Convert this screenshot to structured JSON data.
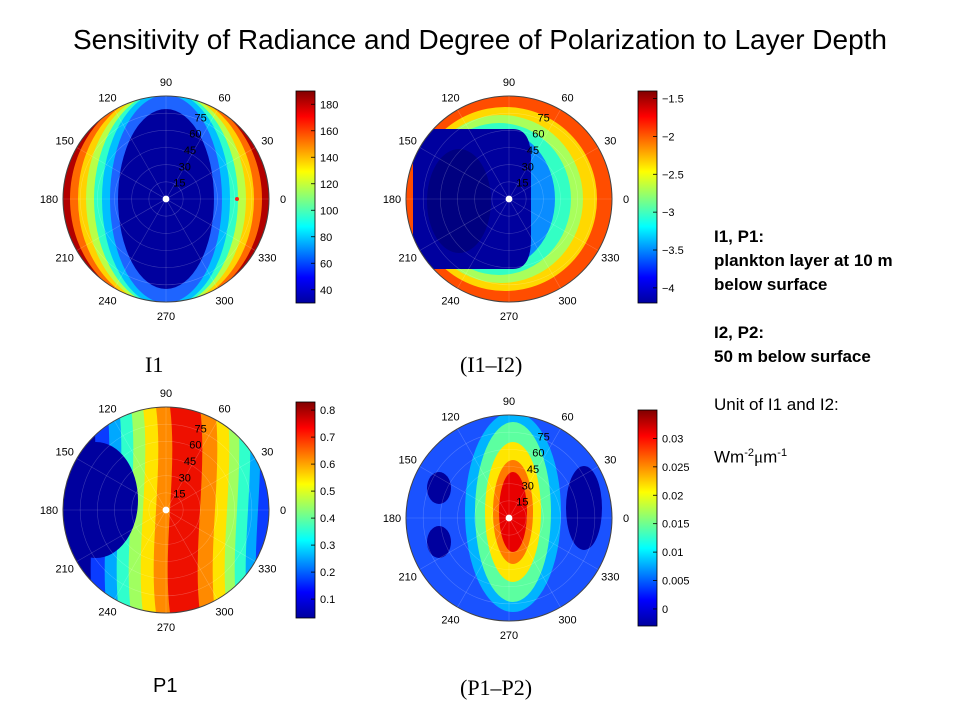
{
  "title": "Sensitivity of Radiance and Degree of Polarization to Layer Depth",
  "captions": {
    "i1": "I1",
    "i1_i2": "(I1–I2)",
    "p1": "P1",
    "p1_p2": "(P1–P2)"
  },
  "notes": {
    "line1": "I1, P1:",
    "line2": "plankton layer at 10 m",
    "line3": "below surface",
    "line4": "I2, P2:",
    "line5": "50 m below surface",
    "line6": "Unit of I1 and I2:",
    "unit_base1": "Wm",
    "unit_sup1": "-2",
    "unit_mu": "μ",
    "unit_base2": "m",
    "unit_sup2": "-1"
  },
  "chart_data": [
    {
      "type": "heatmap",
      "projection": "polar",
      "caption": "I1",
      "azimuth_labels": [
        "0",
        "30",
        "60",
        "90",
        "120",
        "150",
        "180",
        "210",
        "240",
        "270",
        "300",
        "330"
      ],
      "zenith_labels": [
        "15",
        "30",
        "45",
        "60",
        "75"
      ],
      "colorbar": {
        "ticks": [
          40,
          60,
          80,
          100,
          120,
          140,
          160,
          180
        ],
        "range": [
          30,
          190
        ]
      },
      "rings_outside_in": [
        {
          "value": 180,
          "color": "#b20000",
          "shape": "band",
          "spread": 0.3
        },
        {
          "value": 160,
          "color": "#ff6a00",
          "shape": "band",
          "spread": 0.3
        },
        {
          "value": 140,
          "color": "#ffd200",
          "shape": "band",
          "spread": 0.3
        },
        {
          "value": 120,
          "color": "#b8ff48",
          "shape": "band",
          "spread": 0.3
        },
        {
          "value": 100,
          "color": "#30ffc8",
          "shape": "band",
          "spread": 0.3
        },
        {
          "value": 80,
          "color": "#00bfff",
          "shape": "ellipse"
        },
        {
          "value": 60,
          "color": "#1e64ff",
          "shape": "ellipse"
        },
        {
          "value": 40,
          "color": "#00009e",
          "shape": "ellipse"
        }
      ]
    },
    {
      "type": "heatmap",
      "projection": "polar",
      "caption": "(I1–I2)",
      "azimuth_labels": [
        "0",
        "30",
        "60",
        "90",
        "120",
        "150",
        "180",
        "210",
        "240",
        "270",
        "300",
        "330"
      ],
      "zenith_labels": [
        "15",
        "30",
        "45",
        "60",
        "75"
      ],
      "colorbar": {
        "ticks": [
          -1.5,
          -2,
          -2.5,
          -3,
          -3.5,
          -4
        ],
        "range": [
          -4.2,
          -1.4
        ]
      },
      "rings_outside_in": [
        {
          "value": -1.8,
          "color": "#ff4d00",
          "shape": "circle"
        },
        {
          "value": -2.2,
          "color": "#ffd800",
          "shape": "circle"
        },
        {
          "value": -2.6,
          "color": "#a8ff5c",
          "shape": "circle"
        },
        {
          "value": -3.0,
          "color": "#33ffc4",
          "shape": "circle"
        },
        {
          "value": -3.5,
          "color": "#0a8cff",
          "shape": "shifted"
        },
        {
          "value": -3.9,
          "color": "#00009e",
          "shape": "shifted"
        },
        {
          "value": -4.1,
          "color": "#000080",
          "shape": "small"
        }
      ]
    },
    {
      "type": "heatmap",
      "projection": "polar",
      "caption": "P1",
      "azimuth_labels": [
        "0",
        "30",
        "60",
        "90",
        "120",
        "150",
        "180",
        "210",
        "240",
        "270",
        "300",
        "330"
      ],
      "zenith_labels": [
        "15",
        "30",
        "45",
        "60",
        "75"
      ],
      "colorbar": {
        "ticks": [
          0.1,
          0.2,
          0.3,
          0.4,
          0.5,
          0.6,
          0.7,
          0.8
        ],
        "range": [
          0.03,
          0.83
        ]
      },
      "bands_left_to_right": [
        {
          "value": 0.05,
          "color": "#00009e"
        },
        {
          "value": 0.15,
          "color": "#0a3cff"
        },
        {
          "value": 0.25,
          "color": "#00a8ff"
        },
        {
          "value": 0.35,
          "color": "#30ffcc"
        },
        {
          "value": 0.45,
          "color": "#a0ff60"
        },
        {
          "value": 0.55,
          "color": "#ffe400"
        },
        {
          "value": 0.65,
          "color": "#ff8a00"
        },
        {
          "value": 0.75,
          "color": "#ee1000"
        },
        {
          "value": 0.65,
          "color": "#ff8a00"
        },
        {
          "value": 0.55,
          "color": "#ffe400"
        },
        {
          "value": 0.45,
          "color": "#a0ff60"
        },
        {
          "value": 0.35,
          "color": "#30ffcc"
        },
        {
          "value": 0.25,
          "color": "#00a8ff"
        },
        {
          "value": 0.15,
          "color": "#0a3cff"
        }
      ]
    },
    {
      "type": "heatmap",
      "projection": "polar",
      "caption": "(P1–P2)",
      "azimuth_labels": [
        "0",
        "30",
        "60",
        "90",
        "120",
        "150",
        "180",
        "210",
        "240",
        "270",
        "300",
        "330"
      ],
      "zenith_labels": [
        "15",
        "30",
        "45",
        "60",
        "75"
      ],
      "colorbar": {
        "ticks": [
          0,
          0.005,
          0.01,
          0.015,
          0.02,
          0.025,
          0.03
        ],
        "range": [
          -0.003,
          0.035
        ]
      },
      "rings_outside_in": [
        {
          "value": 0.0,
          "color": "#1a52ff",
          "shape": "circle"
        },
        {
          "value": 0.006,
          "color": "#00b4ff",
          "shape": "ellipse"
        },
        {
          "value": 0.012,
          "color": "#5cffa0",
          "shape": "ellipse"
        },
        {
          "value": 0.018,
          "color": "#ffe600",
          "shape": "ellipse"
        },
        {
          "value": 0.024,
          "color": "#ff7a00",
          "shape": "ellipse"
        },
        {
          "value": 0.03,
          "color": "#e80000",
          "shape": "ellipse"
        },
        {
          "value": -0.002,
          "color": "#00009e",
          "shape": "spots"
        }
      ]
    }
  ]
}
